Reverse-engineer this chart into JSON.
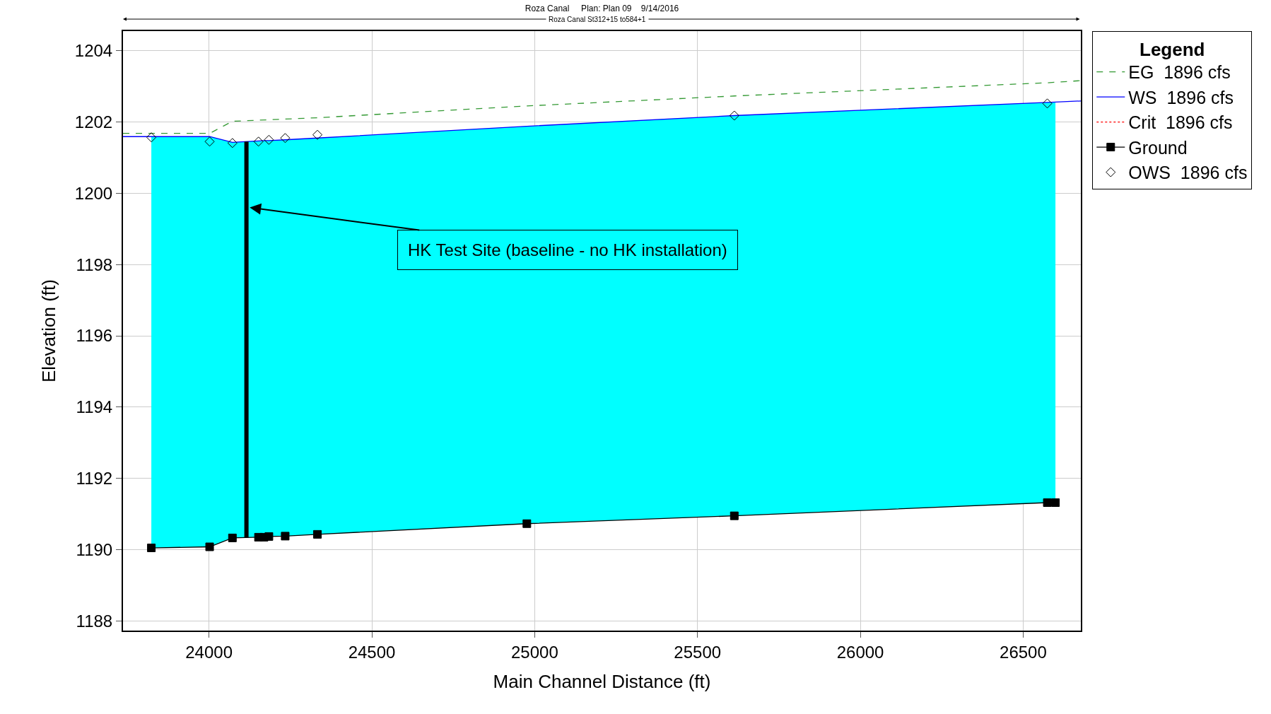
{
  "chart_data": {
    "type": "line",
    "title": "Roza Canal     Plan: Plan 09    9/14/2016",
    "subtitle": "Roza Canal St312+15 to584+1",
    "xlabel": "Main Channel Distance (ft)",
    "ylabel": "Elevation (ft)",
    "legend_title": "Legend",
    "series": [
      {
        "name": "EG  1896 cfs",
        "color": "#339933",
        "line_style": "dashed",
        "marker": "none",
        "x": [
          23736,
          24002,
          24072,
          24333,
          24976,
          25613,
          26574,
          26677
        ],
        "values": [
          1201.68,
          1201.68,
          1202.02,
          1202.12,
          1202.45,
          1202.73,
          1203.1,
          1203.16
        ]
      },
      {
        "type": "area",
        "color": "#00ffff",
        "marker": "none",
        "x": [
          23823,
          24002,
          24072,
          24152,
          24169,
          24184,
          24234,
          24333,
          24976,
          25613,
          26574,
          26599
        ],
        "values": [
          1201.59,
          1201.59,
          1201.43,
          1201.47,
          1201.48,
          1201.48,
          1201.5,
          1201.55,
          1201.88,
          1202.18,
          1202.55,
          1202.56
        ]
      },
      {
        "name": "WS  1896 cfs",
        "color": "#0000ff",
        "line_style": "solid",
        "marker": "none",
        "x": [
          23736,
          23823,
          24002,
          24072,
          24152,
          24169,
          24184,
          24234,
          24333,
          24976,
          25613,
          26574,
          26599,
          26677
        ],
        "values": [
          1201.59,
          1201.59,
          1201.59,
          1201.43,
          1201.47,
          1201.48,
          1201.48,
          1201.5,
          1201.55,
          1201.88,
          1202.18,
          1202.55,
          1202.56,
          1202.59
        ]
      },
      {
        "name": "Crit  1896 cfs",
        "color": "#ff0000",
        "line_style": "dotted",
        "marker": "none",
        "values": [
          null
        ]
      },
      {
        "name": "Ground",
        "color": "#000000",
        "line_style": "solid",
        "marker": "square",
        "x": [
          23823,
          24002,
          24072,
          24152,
          24169,
          24184,
          24234,
          24333,
          24976,
          25613,
          26574,
          26599
        ],
        "values": [
          1190.05,
          1190.08,
          1190.33,
          1190.35,
          1190.35,
          1190.37,
          1190.38,
          1190.43,
          1190.73,
          1190.95,
          1191.32,
          1191.32
        ]
      },
      {
        "name": "OWS  1896 cfs",
        "type": "scatter",
        "color": "#000000",
        "marker": "diamond",
        "x": [
          23823,
          24002,
          24072,
          24152,
          24184,
          24234,
          24333,
          25613,
          26574
        ],
        "values": [
          1201.57,
          1201.45,
          1201.41,
          1201.45,
          1201.5,
          1201.55,
          1201.64,
          1202.18,
          1202.52
        ]
      }
    ],
    "ref_lines": [
      {
        "axis": "x",
        "value": 24115,
        "color": "#000000"
      }
    ],
    "annotations": [
      {
        "text": "HK Test Site (baseline - no HK installation)",
        "x": 24125,
        "y": 1199.6
      }
    ],
    "xlim": [
      23736,
      26677
    ],
    "xticks": [
      24000,
      24500,
      25000,
      25500,
      26000,
      26500
    ],
    "ylim": [
      1187.73,
      1204.55
    ],
    "yticks": [
      1188,
      1190,
      1192,
      1194,
      1196,
      1198,
      1200,
      1202,
      1204
    ],
    "grid": true,
    "legend": "right"
  }
}
